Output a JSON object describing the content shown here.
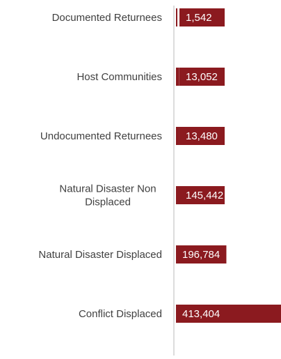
{
  "chart_data": {
    "type": "bar",
    "orientation": "horizontal",
    "categories": [
      "Documented Returnees",
      "Host Communities",
      "Undocumented Returnees",
      "Natural Disaster Non Displaced",
      "Natural Disaster Displaced",
      "Conflict Displaced"
    ],
    "values": [
      1542,
      13052,
      13480,
      145442,
      196784,
      413404
    ],
    "value_labels": [
      "1,542",
      "13,052",
      "13,480",
      "145,442",
      "196,784",
      "413,404"
    ],
    "title": "",
    "xlabel": "",
    "ylabel": "",
    "grid": false,
    "legend": "none",
    "colors": {
      "bar": "#8b1a1f",
      "axis": "#d0d0d0",
      "category_text": "#404040",
      "value_text": "#ffffff"
    }
  }
}
